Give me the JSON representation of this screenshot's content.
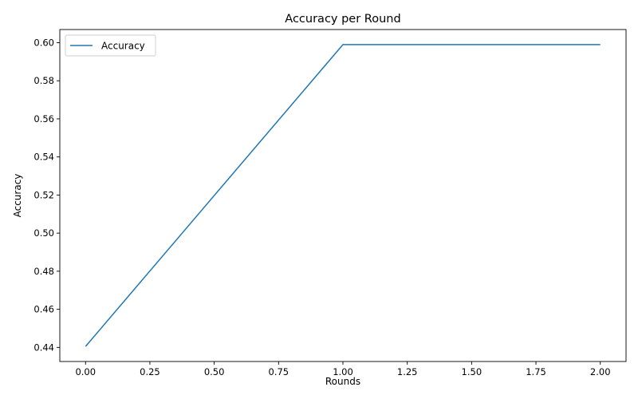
{
  "chart_data": {
    "type": "line",
    "title": "Accuracy per Round",
    "xlabel": "Rounds",
    "ylabel": "Accuracy",
    "x": [
      0.0,
      1.0,
      2.0
    ],
    "series": [
      {
        "name": "Accuracy",
        "values": [
          0.4405,
          0.599,
          0.599
        ],
        "color": "#1f77b4"
      }
    ],
    "xlim": [
      -0.1,
      2.1
    ],
    "ylim": [
      0.4326,
      0.6069
    ],
    "xticks": [
      0.0,
      0.25,
      0.5,
      0.75,
      1.0,
      1.25,
      1.5,
      1.75,
      2.0
    ],
    "xtick_labels": [
      "0.00",
      "0.25",
      "0.50",
      "0.75",
      "1.00",
      "1.25",
      "1.50",
      "1.75",
      "2.00"
    ],
    "yticks": [
      0.44,
      0.46,
      0.48,
      0.5,
      0.52,
      0.54,
      0.56,
      0.58,
      0.6
    ],
    "ytick_labels": [
      "0.44",
      "0.46",
      "0.48",
      "0.50",
      "0.52",
      "0.54",
      "0.56",
      "0.58",
      "0.60"
    ],
    "grid": false,
    "legend": "top-left"
  }
}
